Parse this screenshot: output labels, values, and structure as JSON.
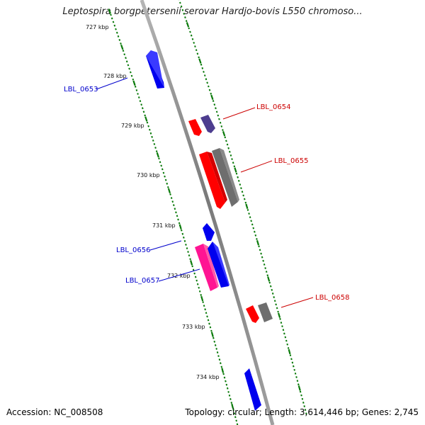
{
  "title": "Leptospira borgpetersenii serovar Hardjo-bovis L550 chromoso...",
  "footer": {
    "accession": "Accession: NC_008508",
    "topology": "Topology: circular; Length: 3,614,446 bp; Genes: 2,745"
  },
  "ruler": {
    "labels": [
      "727 kbp",
      "728 kbp",
      "729 kbp",
      "730 kbp",
      "731 kbp",
      "732 kbp",
      "733 kbp",
      "734 kbp"
    ]
  },
  "colors": {
    "backbone": "#8c8c8c",
    "tick": "#0a7a0a",
    "blue": "#0000ee",
    "red": "#ff0000",
    "gray": "#6e6e6e",
    "purple": "#4d3d8f",
    "pink": "#ff1493",
    "label_blue": "#0000cc",
    "label_red": "#cc0000"
  },
  "genes": [
    {
      "id": "g1",
      "label": "LBL_0653",
      "color": "blue",
      "track": "left",
      "label_side": "left"
    },
    {
      "id": "g2",
      "label": "",
      "color": "red",
      "track": "right",
      "label_side": "right"
    },
    {
      "id": "g3",
      "label": "LBL_0654",
      "color": "purple",
      "track": "right",
      "label_side": "right"
    },
    {
      "id": "g4",
      "label": "",
      "color": "red",
      "track": "right",
      "label_side": "right"
    },
    {
      "id": "g5",
      "label": "LBL_0655",
      "color": "gray",
      "track": "right",
      "label_side": "right"
    },
    {
      "id": "g6",
      "label": "",
      "color": "blue",
      "track": "left",
      "label_side": "left"
    },
    {
      "id": "g7",
      "label": "LBL_0656",
      "color": "pink",
      "track": "left",
      "label_side": "left"
    },
    {
      "id": "g8",
      "label": "LBL_0657",
      "color": "blue",
      "track": "left",
      "label_side": "left"
    },
    {
      "id": "g9",
      "label": "",
      "color": "red",
      "track": "right",
      "label_side": "right"
    },
    {
      "id": "g10",
      "label": "LBL_0658",
      "color": "gray",
      "track": "right",
      "label_side": "right"
    },
    {
      "id": "g11",
      "label": "",
      "color": "blue",
      "track": "left",
      "label_side": "left"
    }
  ]
}
